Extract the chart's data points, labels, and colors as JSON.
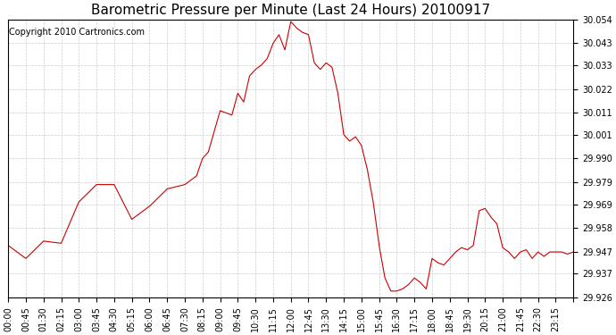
{
  "title": "Barometric Pressure per Minute (Last 24 Hours) 20100917",
  "copyright": "Copyright 2010 Cartronics.com",
  "line_color": "#cc0000",
  "bg_color": "#ffffff",
  "plot_bg_color": "#ffffff",
  "grid_color": "#cccccc",
  "ylim": [
    29.926,
    30.054
  ],
  "yticks": [
    29.926,
    29.937,
    29.947,
    29.958,
    29.969,
    29.979,
    29.99,
    30.001,
    30.011,
    30.022,
    30.033,
    30.043,
    30.054
  ],
  "xtick_labels": [
    "00:00",
    "00:45",
    "01:30",
    "02:15",
    "03:00",
    "03:45",
    "04:30",
    "05:15",
    "06:00",
    "06:45",
    "07:30",
    "08:15",
    "09:00",
    "09:45",
    "10:30",
    "11:15",
    "12:00",
    "12:45",
    "13:30",
    "14:15",
    "15:00",
    "15:45",
    "16:30",
    "17:15",
    "18:00",
    "18:45",
    "19:30",
    "20:15",
    "21:00",
    "21:45",
    "22:30",
    "23:15"
  ],
  "keypoints_x": [
    0,
    45,
    90,
    135,
    180,
    225,
    270,
    315,
    360,
    405,
    450,
    480,
    495,
    510,
    540,
    570,
    585,
    600,
    615,
    630,
    645,
    660,
    675,
    690,
    705,
    720,
    735,
    750,
    765,
    780,
    795,
    810,
    825,
    840,
    855,
    870,
    885,
    900,
    915,
    930,
    945,
    960,
    975,
    990,
    1005,
    1020,
    1035,
    1050,
    1065,
    1080,
    1095,
    1110,
    1125,
    1140,
    1155,
    1170,
    1185,
    1200,
    1215,
    1230,
    1245,
    1260,
    1275,
    1290,
    1305,
    1320,
    1335,
    1350,
    1365,
    1380,
    1395,
    1410,
    1425,
    1440
  ],
  "keypoints_y": [
    29.95,
    29.944,
    29.952,
    29.951,
    29.97,
    29.978,
    29.978,
    29.962,
    29.968,
    29.976,
    29.978,
    29.982,
    29.99,
    29.993,
    30.012,
    30.01,
    30.02,
    30.016,
    30.028,
    30.031,
    30.033,
    30.036,
    30.043,
    30.047,
    30.04,
    30.053,
    30.05,
    30.048,
    30.047,
    30.034,
    30.031,
    30.034,
    30.032,
    30.02,
    30.001,
    29.998,
    30.0,
    29.996,
    29.985,
    29.97,
    29.95,
    29.935,
    29.929,
    29.929,
    29.93,
    29.932,
    29.935,
    29.933,
    29.93,
    29.944,
    29.942,
    29.941,
    29.944,
    29.947,
    29.949,
    29.948,
    29.95,
    29.966,
    29.967,
    29.963,
    29.96,
    29.949,
    29.947,
    29.944,
    29.947,
    29.948,
    29.944,
    29.947,
    29.945,
    29.947,
    29.947,
    29.947,
    29.946,
    29.947
  ]
}
